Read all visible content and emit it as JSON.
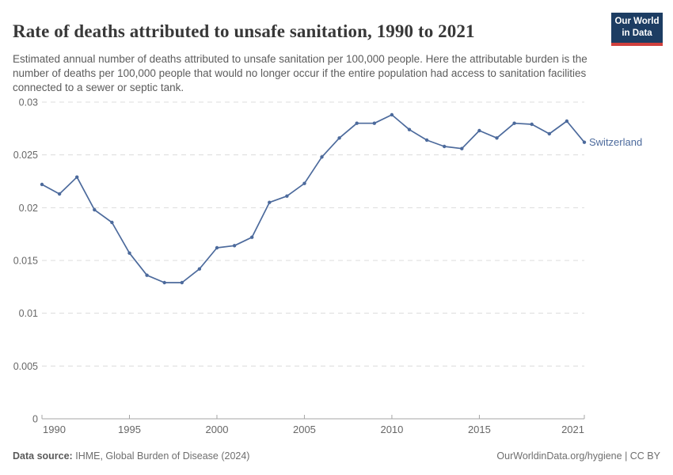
{
  "header": {
    "title": "Rate of deaths attributed to unsafe sanitation, 1990 to 2021",
    "subtitle": "Estimated annual number of deaths attributed to unsafe sanitation per 100,000 people. Here the attributable burden is the number of deaths per 100,000 people that would no longer occur if the entire population had access to sanitation facilities connected to a sewer or septic tank."
  },
  "logo": {
    "line1": "Our World",
    "line2": "in Data",
    "bg_color": "#1d3d63",
    "accent_color": "#d0403d"
  },
  "chart_data": {
    "type": "line",
    "title": "Rate of deaths attributed to unsafe sanitation, 1990 to 2021",
    "xlabel": "",
    "ylabel": "",
    "xlim": [
      1990,
      2021
    ],
    "ylim": [
      0,
      0.03
    ],
    "grid": "horizontal-dashed",
    "legend_position": "end-of-line-label",
    "xticks": [
      1990,
      1995,
      2000,
      2005,
      2010,
      2015,
      2021
    ],
    "xtick_labels": [
      "1990",
      "1995",
      "2000",
      "2005",
      "2010",
      "2015",
      "2021"
    ],
    "yticks": [
      0,
      0.005,
      0.01,
      0.015,
      0.02,
      0.025,
      0.03
    ],
    "ytick_labels": [
      "0",
      "0.005",
      "0.01",
      "0.015",
      "0.02",
      "0.025",
      "0.03"
    ],
    "x": [
      1990,
      1991,
      1992,
      1993,
      1994,
      1995,
      1996,
      1997,
      1998,
      1999,
      2000,
      2001,
      2002,
      2003,
      2004,
      2005,
      2006,
      2007,
      2008,
      2009,
      2010,
      2011,
      2012,
      2013,
      2014,
      2015,
      2016,
      2017,
      2018,
      2019,
      2020,
      2021
    ],
    "series": [
      {
        "name": "Switzerland",
        "color": "#4c6a9c",
        "values": [
          0.0222,
          0.0213,
          0.0229,
          0.0198,
          0.0186,
          0.0157,
          0.0136,
          0.0129,
          0.0129,
          0.0142,
          0.0162,
          0.0164,
          0.0172,
          0.0205,
          0.0211,
          0.0223,
          0.0248,
          0.0266,
          0.028,
          0.028,
          0.0288,
          0.0274,
          0.0264,
          0.0258,
          0.0256,
          0.0273,
          0.0266,
          0.028,
          0.0279,
          0.027,
          0.0282,
          0.0262
        ]
      }
    ],
    "colors": {
      "gridline": "#dcdcdc",
      "axis": "#a5a5a5",
      "tick_text": "#676767"
    }
  },
  "footer": {
    "datasource_label": "Data source:",
    "datasource_value": "IHME, Global Burden of Disease (2024)",
    "link": "OurWorldinData.org/hygiene | CC BY"
  }
}
